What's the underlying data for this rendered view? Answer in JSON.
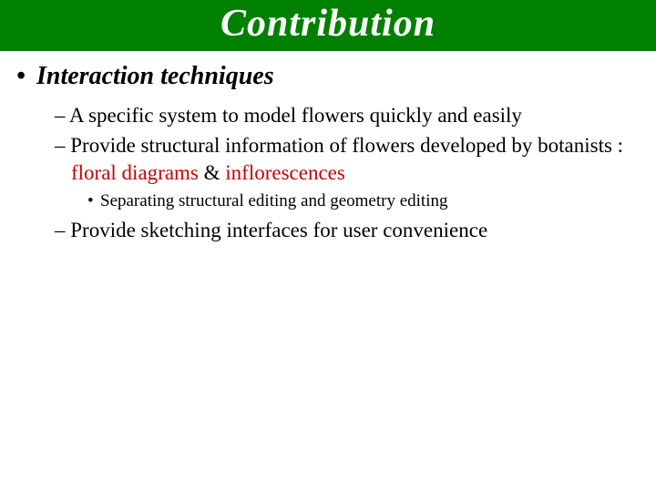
{
  "colors": {
    "title_bg": "#008000",
    "title_text": "#ffffff",
    "body_text": "#000000",
    "highlight": "#cc0000",
    "background": "#ffffff"
  },
  "typography": {
    "title_fontsize": 42,
    "level1_fontsize": 28,
    "level2_fontsize": 23,
    "level3_fontsize": 19,
    "font_family": "Times New Roman"
  },
  "title": "Contribution",
  "level1": {
    "bullet": "•",
    "text": "Interaction techniques"
  },
  "items": [
    {
      "dash": "–",
      "text": "A specific system to model flowers quickly and easily"
    },
    {
      "dash": "–",
      "prefix": "Provide structural information of flowers developed by botanists : ",
      "hl1": "floral diagrams",
      "amp": " & ",
      "hl2": "inflorescences"
    }
  ],
  "sub": {
    "bullet": "•",
    "text": "Separating structural editing and geometry editing"
  },
  "item3": {
    "dash": "–",
    "text": "Provide sketching interfaces for user convenience"
  }
}
